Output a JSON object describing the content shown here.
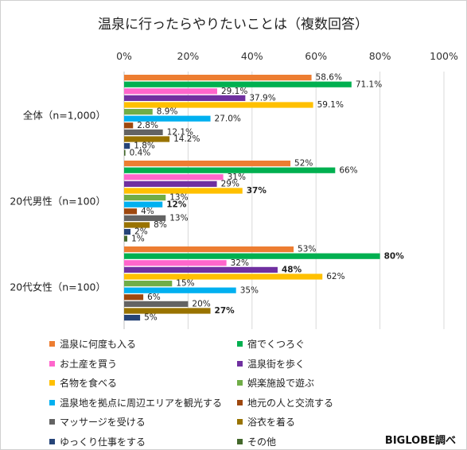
{
  "chart_data": {
    "type": "bar",
    "orientation": "horizontal",
    "title": "温泉に行ったらやりたいことは（複数回答）",
    "x_ticks": [
      "0%",
      "20%",
      "40%",
      "60%",
      "80%",
      "100%"
    ],
    "xlim": [
      0,
      100
    ],
    "grid": true,
    "legend_position": "bottom",
    "categories": [
      "全体（n=1,000）",
      "20代男性（n=100）",
      "20代女性（n=100）"
    ],
    "series": [
      {
        "name": "温泉に何度も入る",
        "color": "#ed7d31",
        "values": [
          58.6,
          52,
          53
        ],
        "labels": [
          "58.6%",
          "52%",
          "53%"
        ],
        "bold": [
          false,
          false,
          false
        ]
      },
      {
        "name": "宿でくつろぐ",
        "color": "#00b050",
        "values": [
          71.1,
          66,
          80
        ],
        "labels": [
          "71.1%",
          "66%",
          "80%"
        ],
        "bold": [
          false,
          false,
          true
        ]
      },
      {
        "name": "お土産を買う",
        "color": "#ff66cc",
        "values": [
          29.1,
          31,
          32
        ],
        "labels": [
          "29.1%",
          "31%",
          "32%"
        ],
        "bold": [
          false,
          false,
          false
        ]
      },
      {
        "name": "温泉街を歩く",
        "color": "#7030a0",
        "values": [
          37.9,
          29,
          48
        ],
        "labels": [
          "37.9%",
          "29%",
          "48%"
        ],
        "bold": [
          false,
          false,
          true
        ]
      },
      {
        "name": "名物を食べる",
        "color": "#ffc000",
        "values": [
          59.1,
          37,
          62
        ],
        "labels": [
          "59.1%",
          "37%",
          "62%"
        ],
        "bold": [
          false,
          true,
          false
        ]
      },
      {
        "name": "娯楽施設で遊ぶ",
        "color": "#70ad47",
        "values": [
          8.9,
          13,
          15
        ],
        "labels": [
          "8.9%",
          "13%",
          "15%"
        ],
        "bold": [
          false,
          false,
          false
        ]
      },
      {
        "name": "温泉地を拠点に周辺エリアを観光する",
        "color": "#00b0f0",
        "values": [
          27.0,
          12,
          35
        ],
        "labels": [
          "27.0%",
          "12%",
          "35%"
        ],
        "bold": [
          false,
          true,
          false
        ]
      },
      {
        "name": "地元の人と交流する",
        "color": "#9e480e",
        "values": [
          2.8,
          4,
          6
        ],
        "labels": [
          "2.8%",
          "4%",
          "6%"
        ],
        "bold": [
          false,
          false,
          false
        ]
      },
      {
        "name": "マッサージを受ける",
        "color": "#636363",
        "values": [
          12.1,
          13,
          20
        ],
        "labels": [
          "12.1%",
          "13%",
          "20%"
        ],
        "bold": [
          false,
          false,
          false
        ]
      },
      {
        "name": "浴衣を着る",
        "color": "#997300",
        "values": [
          14.2,
          8,
          27
        ],
        "labels": [
          "14.2%",
          "8%",
          "27%"
        ],
        "bold": [
          false,
          false,
          true
        ]
      },
      {
        "name": "ゆっくり仕事をする",
        "color": "#264478",
        "values": [
          1.8,
          2,
          5
        ],
        "labels": [
          "1.8%",
          "2%",
          "5%"
        ],
        "bold": [
          false,
          false,
          false
        ]
      },
      {
        "name": "その他",
        "color": "#43682b",
        "values": [
          0.4,
          1,
          0
        ],
        "labels": [
          "0.4%",
          "1%",
          ""
        ],
        "bold": [
          false,
          false,
          false
        ]
      }
    ]
  },
  "credit": "BIGLOBE調べ"
}
